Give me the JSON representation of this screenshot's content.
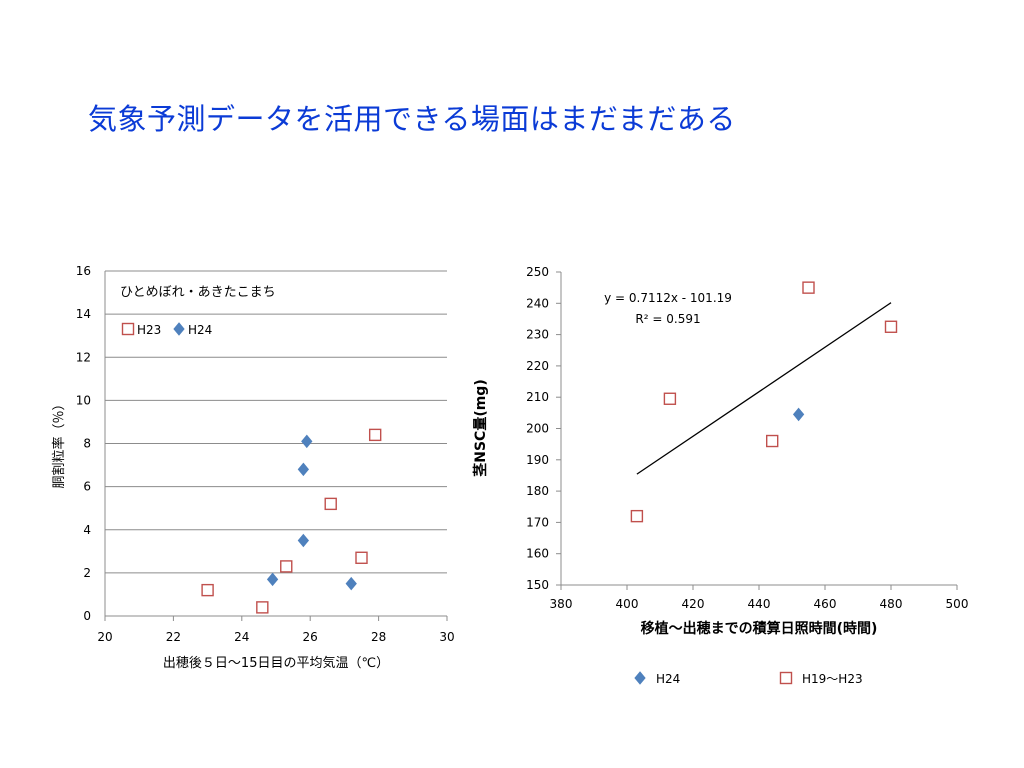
{
  "slide": {
    "title": "気象予測データを活用できる場面はまだまだある"
  },
  "colors": {
    "title": "#0b3bd6",
    "h24": "#4f81bd",
    "h23": "#c0504d",
    "grid": "#8c8c8c"
  },
  "chart_data": [
    {
      "type": "scatter",
      "title": "",
      "annotation": "ひとめぼれ・あきたこまち",
      "xlabel": "出穂後５日～15日目の平均気温（℃）",
      "ylabel": "胴割粒率（％）",
      "xlim": [
        20,
        30
      ],
      "ylim": [
        0,
        16
      ],
      "xticks": [
        20,
        22,
        24,
        26,
        28,
        30
      ],
      "yticks": [
        0,
        2,
        4,
        6,
        8,
        10,
        12,
        14,
        16
      ],
      "grid": "horizontal",
      "legend": "top-left",
      "series": [
        {
          "name": "H23",
          "marker": "open-square",
          "color": "#c0504d",
          "points": [
            [
              23.0,
              1.2
            ],
            [
              24.6,
              0.4
            ],
            [
              25.3,
              2.3
            ],
            [
              26.6,
              5.2
            ],
            [
              27.5,
              2.7
            ],
            [
              27.9,
              8.4
            ]
          ]
        },
        {
          "name": "H24",
          "marker": "diamond",
          "color": "#4f81bd",
          "points": [
            [
              24.9,
              1.7
            ],
            [
              25.8,
              3.5
            ],
            [
              25.8,
              6.8
            ],
            [
              25.9,
              8.1
            ],
            [
              27.2,
              1.5
            ]
          ]
        }
      ]
    },
    {
      "type": "scatter",
      "title": "",
      "xlabel": "移植～出穂までの積算日照時間(時間)",
      "ylabel": "茎NSC量(mg)",
      "xlim": [
        380,
        500
      ],
      "ylim": [
        150,
        250
      ],
      "xticks": [
        380,
        400,
        420,
        440,
        460,
        480,
        500
      ],
      "yticks": [
        150,
        160,
        170,
        180,
        190,
        200,
        210,
        220,
        230,
        240,
        250
      ],
      "grid": "none",
      "legend": "bottom",
      "equation": "y = 0.7112x - 101.19",
      "r_squared": "R² = 0.591",
      "trendline": {
        "slope": 0.7112,
        "intercept": -101.19,
        "x_range": [
          403,
          480
        ]
      },
      "series": [
        {
          "name": "H24",
          "marker": "diamond",
          "color": "#4f81bd",
          "points": [
            [
              452,
              204.5
            ]
          ]
        },
        {
          "name": "H19～H23",
          "marker": "open-square",
          "color": "#c0504d",
          "points": [
            [
              403,
              172
            ],
            [
              413,
              209.5
            ],
            [
              444,
              196
            ],
            [
              455,
              245
            ],
            [
              480,
              232.5
            ]
          ]
        }
      ]
    }
  ]
}
